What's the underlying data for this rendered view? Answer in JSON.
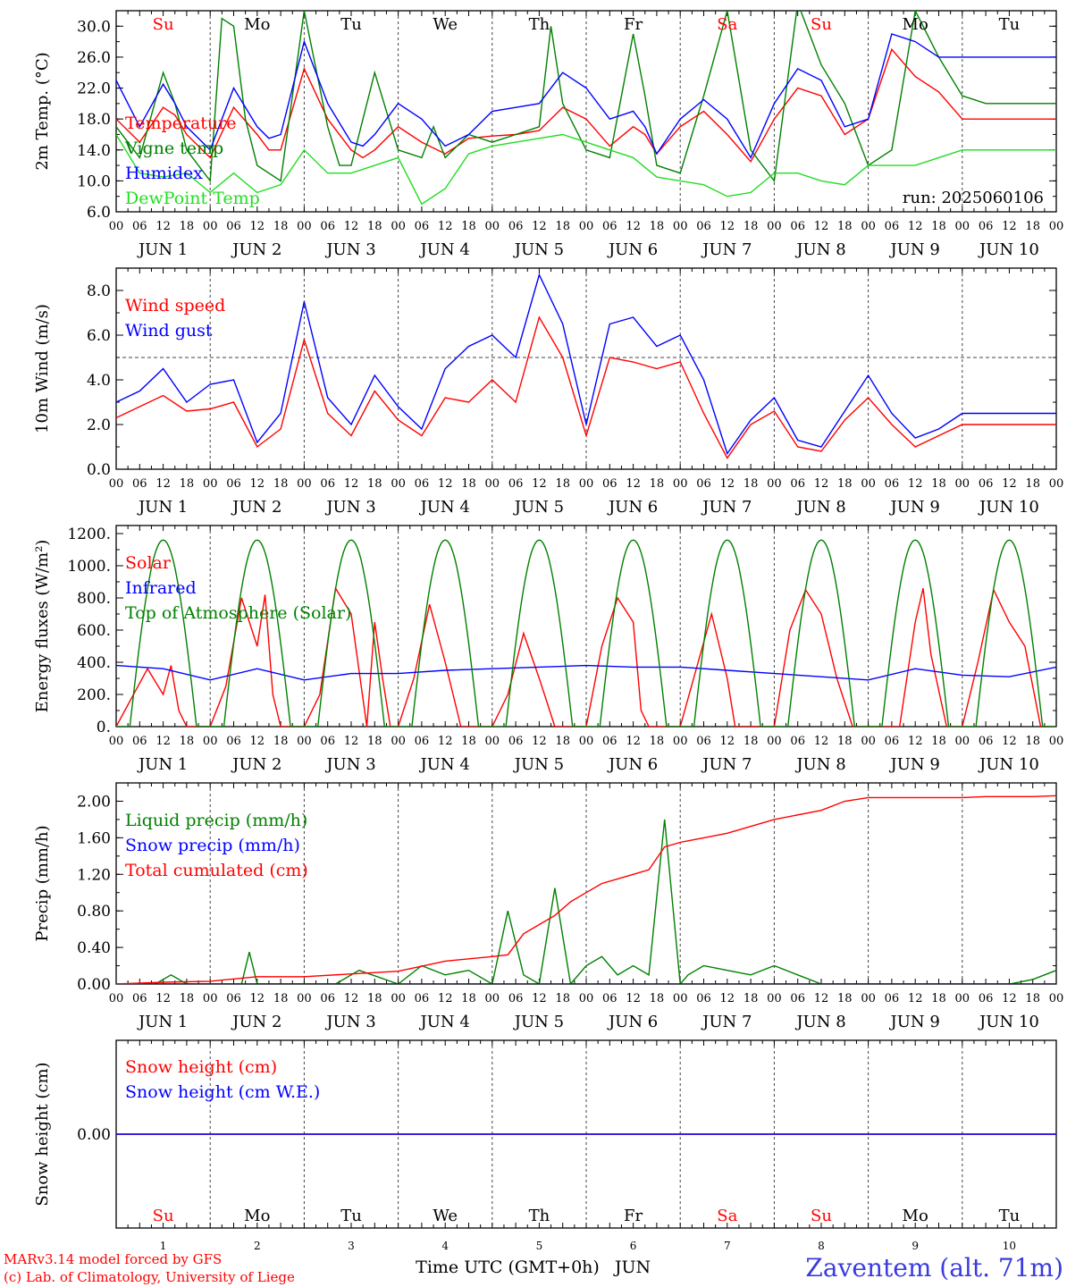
{
  "colors": {
    "red": "#ff0000",
    "green": "#008000",
    "blue": "#0000ff",
    "lightgreen": "#22dd22",
    "black": "#000000",
    "footer_blue": "#3a3ae0"
  },
  "days": {
    "weekdays": [
      "Su",
      "Mo",
      "Tu",
      "We",
      "Th",
      "Fr",
      "Sa",
      "Su",
      "Mo",
      "Tu"
    ],
    "weekday_colors": [
      "#ff0000",
      "#000000",
      "#000000",
      "#000000",
      "#000000",
      "#000000",
      "#ff0000",
      "#ff0000",
      "#000000",
      "#000000"
    ],
    "day_numbers": [
      "1",
      "2",
      "3",
      "4",
      "5",
      "6",
      "7",
      "8",
      "9",
      "10"
    ],
    "axis_dates": [
      "JUN  1",
      "JUN  2",
      "JUN  3",
      "JUN  4",
      "JUN  5",
      "JUN  6",
      "JUN  7",
      "JUN  8",
      "JUN  9",
      "JUN 10"
    ],
    "hour_labels": [
      "00",
      "06",
      "12",
      "18"
    ],
    "final_hour": "00"
  },
  "run_label": "run: 2025060106",
  "footer": {
    "model": "MARv3.14 model forced by GFS",
    "copyright": "(c) Lab. of Climatology, University of Liege",
    "xaxis_title": "Time UTC (GMT+0h)",
    "month": "JUN",
    "station": "Zaventem (alt. 71m)"
  },
  "chart_data": [
    {
      "type": "line",
      "ylabel": "2m Temp. (°C)",
      "ylim": [
        6,
        32
      ],
      "yticks": [
        "6.0",
        "10.0",
        "14.0",
        "18.0",
        "22.0",
        "26.0",
        "30.0"
      ],
      "ytick_values": [
        6,
        10,
        14,
        18,
        22,
        26,
        30
      ],
      "x_unit": "hours since 1 JUN 00 UTC",
      "series": [
        {
          "name": "Temperature",
          "color": "#ff0000",
          "x": [
            0,
            6,
            12,
            15,
            18,
            24,
            30,
            36,
            39,
            42,
            48,
            54,
            60,
            63,
            66,
            72,
            78,
            84,
            90,
            96,
            102,
            108,
            114,
            120,
            126,
            132,
            135,
            138,
            144,
            150,
            156,
            162,
            168,
            174,
            180,
            186,
            192,
            198,
            204,
            210,
            216,
            222,
            228,
            234,
            240
          ],
          "values": [
            18,
            15,
            19.5,
            18.5,
            16,
            13,
            19.5,
            16,
            14,
            14,
            24.5,
            18,
            14,
            13,
            14,
            17,
            15,
            13.5,
            15.5,
            15.8,
            16,
            16.5,
            19.5,
            18,
            14.5,
            17,
            16,
            13.5,
            17,
            19,
            16,
            12.5,
            18,
            22,
            21,
            16,
            18,
            27,
            23.5,
            21.5,
            18,
            18,
            18,
            18,
            18
          ]
        },
        {
          "name": "Vigne temp",
          "color": "#008000",
          "x": [
            0,
            6,
            12,
            15,
            18,
            24,
            27,
            30,
            33,
            36,
            42,
            48,
            54,
            57,
            60,
            66,
            72,
            78,
            81,
            84,
            90,
            96,
            102,
            108,
            111,
            114,
            120,
            126,
            132,
            135,
            138,
            144,
            150,
            156,
            162,
            168,
            174,
            180,
            186,
            192,
            198,
            204,
            210,
            216,
            222,
            228,
            234,
            240
          ],
          "values": [
            17,
            13,
            24,
            20,
            14,
            10,
            31,
            30,
            18,
            12,
            10,
            32,
            17,
            12,
            12,
            24,
            14,
            13,
            17,
            13,
            16,
            15,
            16,
            17,
            30,
            20,
            14,
            13,
            29,
            21,
            12,
            11,
            21,
            32,
            14,
            10,
            33,
            25,
            20,
            12,
            14,
            32,
            26,
            21,
            20,
            20,
            20,
            20
          ]
        },
        {
          "name": "Humidex",
          "color": "#0000ff",
          "x": [
            0,
            6,
            12,
            15,
            18,
            24,
            30,
            36,
            39,
            42,
            48,
            54,
            60,
            63,
            66,
            72,
            78,
            84,
            90,
            96,
            102,
            108,
            114,
            120,
            126,
            132,
            135,
            138,
            144,
            150,
            156,
            162,
            168,
            174,
            180,
            186,
            192,
            198,
            204,
            210,
            216,
            222,
            228,
            234,
            240
          ],
          "values": [
            23,
            17,
            22.5,
            20,
            17,
            14,
            22,
            17,
            15.5,
            16,
            28,
            20,
            15,
            14.5,
            16,
            20,
            18,
            14.5,
            16,
            19,
            19.5,
            20,
            24,
            22,
            18,
            19,
            17,
            13.5,
            18,
            20.5,
            18,
            13,
            20,
            24.5,
            23,
            17,
            18,
            29,
            28,
            26,
            26,
            26,
            26,
            26,
            26
          ]
        },
        {
          "name": "DewPoint Temp",
          "color": "#22dd22",
          "x": [
            0,
            6,
            12,
            18,
            24,
            30,
            36,
            42,
            48,
            54,
            60,
            66,
            72,
            78,
            84,
            90,
            96,
            102,
            108,
            114,
            120,
            126,
            132,
            138,
            144,
            150,
            156,
            162,
            168,
            174,
            180,
            186,
            192,
            198,
            204,
            210,
            216,
            222,
            228,
            234,
            240
          ],
          "values": [
            16,
            11,
            10.5,
            11,
            8.5,
            11,
            8.5,
            9.5,
            14,
            11,
            11,
            12,
            13,
            7,
            9,
            13.5,
            14.5,
            15,
            15.5,
            16,
            15,
            14,
            13,
            10.5,
            10,
            9.5,
            8,
            8.5,
            11,
            11,
            10,
            9.5,
            12,
            12,
            12,
            13,
            14,
            14,
            14,
            14,
            14
          ]
        }
      ]
    },
    {
      "type": "line",
      "ylabel": "10m Wind (m/s)",
      "ylim": [
        0,
        9
      ],
      "yticks": [
        "0.0",
        "2.0",
        "4.0",
        "6.0",
        "8.0"
      ],
      "ytick_values": [
        0,
        2,
        4,
        6,
        8
      ],
      "reference_line": 5,
      "x_unit": "hours since 1 JUN 00 UTC",
      "series": [
        {
          "name": "Wind speed",
          "color": "#ff0000",
          "x": [
            0,
            6,
            12,
            18,
            24,
            30,
            36,
            42,
            48,
            54,
            60,
            66,
            72,
            78,
            84,
            90,
            96,
            102,
            108,
            114,
            120,
            126,
            132,
            138,
            144,
            150,
            156,
            162,
            168,
            174,
            180,
            186,
            192,
            198,
            204,
            210,
            216,
            222,
            228,
            234,
            240
          ],
          "values": [
            2.3,
            2.8,
            3.3,
            2.6,
            2.7,
            3,
            1,
            1.8,
            5.8,
            2.5,
            1.5,
            3.5,
            2.2,
            1.5,
            3.2,
            3,
            4,
            3,
            6.8,
            5,
            1.5,
            5,
            4.8,
            4.5,
            4.8,
            2.5,
            0.5,
            2,
            2.6,
            1,
            0.8,
            2.2,
            3.2,
            2,
            1,
            1.5,
            2,
            2,
            2,
            2,
            2
          ]
        },
        {
          "name": "Wind gust",
          "color": "#0000ff",
          "x": [
            0,
            6,
            12,
            18,
            24,
            30,
            36,
            42,
            48,
            54,
            60,
            66,
            72,
            78,
            84,
            90,
            96,
            102,
            108,
            114,
            120,
            126,
            132,
            138,
            144,
            150,
            156,
            162,
            168,
            174,
            180,
            186,
            192,
            198,
            204,
            210,
            216,
            222,
            228,
            234,
            240
          ],
          "values": [
            3,
            3.5,
            4.5,
            3,
            3.8,
            4,
            1.2,
            2.5,
            7.5,
            3.2,
            2,
            4.2,
            2.8,
            1.8,
            4.5,
            5.5,
            6,
            5,
            8.7,
            6.5,
            2,
            6.5,
            6.8,
            5.5,
            6,
            4,
            0.7,
            2.2,
            3.2,
            1.3,
            1,
            2.6,
            4.2,
            2.5,
            1.4,
            1.8,
            2.5,
            2.5,
            2.5,
            2.5,
            2.5
          ]
        }
      ]
    },
    {
      "type": "line",
      "ylabel": "Energy fluxes (W/m²)",
      "ylim": [
        0,
        1250
      ],
      "yticks": [
        "0.",
        "200.",
        "400.",
        "600.",
        "800.",
        "1000.",
        "1200."
      ],
      "ytick_values": [
        0,
        200,
        400,
        600,
        800,
        1000,
        1200
      ],
      "x_unit": "hours since 1 JUN 00 UTC",
      "series": [
        {
          "name": "Solar",
          "color": "#ff0000",
          "x": [
            0,
            4,
            8,
            12,
            14,
            16,
            18,
            20,
            24,
            28,
            32,
            36,
            38,
            40,
            42,
            44,
            46,
            48,
            52,
            56,
            60,
            64,
            66,
            68,
            70,
            72,
            76,
            80,
            84,
            86,
            88,
            90,
            92,
            96,
            100,
            104,
            108,
            110,
            112,
            114,
            116,
            120,
            124,
            128,
            132,
            134,
            136,
            138,
            140,
            144,
            148,
            152,
            156,
            158,
            160,
            162,
            164,
            168,
            172,
            176,
            180,
            184,
            188,
            192,
            196,
            200,
            204,
            206,
            208,
            212,
            216,
            220,
            224,
            228,
            232,
            236,
            240
          ],
          "values": [
            0,
            180,
            360,
            200,
            380,
            100,
            0,
            0,
            0,
            250,
            800,
            500,
            820,
            200,
            0,
            0,
            0,
            0,
            200,
            860,
            700,
            0,
            650,
            300,
            0,
            0,
            300,
            760,
            400,
            200,
            0,
            0,
            0,
            0,
            200,
            580,
            300,
            150,
            0,
            0,
            0,
            0,
            500,
            800,
            650,
            100,
            0,
            0,
            0,
            0,
            350,
            700,
            300,
            0,
            0,
            0,
            0,
            0,
            600,
            850,
            700,
            300,
            0,
            0,
            0,
            0,
            650,
            860,
            450,
            0,
            0,
            400,
            850,
            650,
            500,
            0,
            0
          ]
        },
        {
          "name": "Infrared",
          "color": "#0000ff",
          "x": [
            0,
            12,
            24,
            36,
            48,
            60,
            72,
            84,
            96,
            108,
            120,
            132,
            144,
            156,
            168,
            180,
            192,
            204,
            216,
            228,
            240
          ],
          "values": [
            380,
            360,
            290,
            360,
            290,
            330,
            330,
            350,
            360,
            370,
            380,
            370,
            370,
            350,
            330,
            310,
            290,
            360,
            320,
            310,
            370
          ]
        },
        {
          "name": "Top of Atmosphere (Solar)",
          "color": "#008000",
          "peak": 1160,
          "sunrise_hour": 3.5,
          "sunset_hour": 20.5
        }
      ]
    },
    {
      "type": "line",
      "ylabel": "Precip (mm/h)",
      "ylim": [
        0,
        2.2
      ],
      "yticks": [
        "0.00",
        "0.40",
        "0.80",
        "1.20",
        "1.60",
        "2.00"
      ],
      "ytick_values": [
        0,
        0.4,
        0.8,
        1.2,
        1.6,
        2
      ],
      "x_unit": "hours since 1 JUN 00 UTC",
      "series": [
        {
          "name": "Liquid precip (mm/h)",
          "color": "#008000",
          "x": [
            0,
            10,
            14,
            18,
            24,
            32,
            34,
            36,
            48,
            56,
            62,
            72,
            78,
            84,
            90,
            96,
            100,
            104,
            108,
            112,
            116,
            120,
            124,
            128,
            132,
            136,
            140,
            144,
            146,
            148,
            150,
            156,
            162,
            168,
            174,
            180,
            186,
            192,
            198,
            204,
            210,
            216,
            222,
            228,
            234,
            240
          ],
          "values": [
            0,
            0,
            0.1,
            0,
            0,
            0,
            0.35,
            0,
            0,
            0,
            0.15,
            0,
            0.2,
            0.1,
            0.15,
            0,
            0.8,
            0.1,
            0,
            1.05,
            0,
            0.2,
            0.3,
            0.1,
            0.2,
            0.1,
            1.8,
            0,
            0.1,
            0.15,
            0.2,
            0.15,
            0.1,
            0.2,
            0.1,
            0,
            0,
            0,
            0,
            0,
            0,
            0,
            0,
            0,
            0.05,
            0.15
          ]
        },
        {
          "name": "Snow precip (mm/h)",
          "color": "#0000ff",
          "x": [
            0,
            240
          ],
          "values": [
            0,
            0
          ]
        },
        {
          "name": "Total cumulated (cm)",
          "color": "#ff0000",
          "x": [
            0,
            12,
            24,
            36,
            48,
            72,
            84,
            96,
            100,
            104,
            108,
            112,
            116,
            120,
            124,
            128,
            132,
            136,
            140,
            144,
            150,
            156,
            168,
            180,
            186,
            192,
            198,
            204,
            210,
            216,
            222,
            228,
            234,
            240
          ],
          "values": [
            0,
            0.02,
            0.03,
            0.08,
            0.08,
            0.14,
            0.25,
            0.3,
            0.32,
            0.55,
            0.65,
            0.75,
            0.9,
            1.0,
            1.1,
            1.15,
            1.2,
            1.25,
            1.5,
            1.55,
            1.6,
            1.65,
            1.8,
            1.9,
            2.0,
            2.04,
            2.04,
            2.04,
            2.04,
            2.04,
            2.05,
            2.05,
            2.05,
            2.06
          ]
        }
      ]
    },
    {
      "type": "line",
      "ylabel": "Snow height (cm)",
      "ylim": [
        -1,
        1
      ],
      "yticks": [
        "0.00"
      ],
      "ytick_values": [
        0
      ],
      "x_unit": "hours since 1 JUN 00 UTC",
      "series": [
        {
          "name": "Snow height (cm)",
          "color": "#ff0000",
          "x": [
            0,
            240
          ],
          "values": [
            0,
            0
          ]
        },
        {
          "name": "Snow height (cm W.E.)",
          "color": "#0000ff",
          "x": [
            0,
            240
          ],
          "values": [
            0,
            0
          ]
        }
      ]
    }
  ]
}
